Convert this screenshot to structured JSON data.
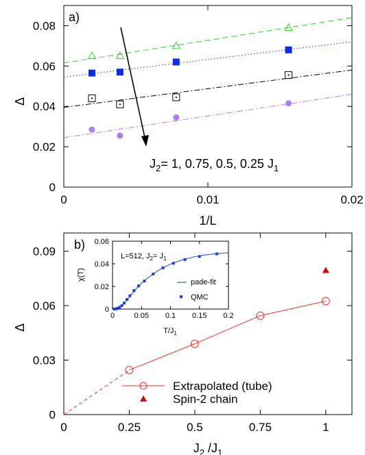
{
  "chart_data": [
    {
      "type": "scatter",
      "panel_label": "a)",
      "xlabel": "1/L",
      "ylabel": "Δ",
      "xlim": [
        0,
        0.02
      ],
      "ylim": [
        0,
        0.09
      ],
      "xticks": [
        0,
        0.01,
        0.02
      ],
      "xtick_labels": [
        "0",
        "0.01",
        "0.02"
      ],
      "yticks": [
        0,
        0.02,
        0.04,
        0.06,
        0.08
      ],
      "ytick_labels": [
        "0",
        "0.02",
        "0.04",
        "0.06",
        "0.08"
      ],
      "annotation": {
        "text": "J2= 1, 0.75, 0.5, 0.25 J1",
        "base": "J",
        "sub1": "2",
        "mid": "= 1, 0.75, 0.5, 0.25 J",
        "sub2": "1"
      },
      "series": [
        {
          "marker": "open-triangle",
          "color": "#33cc33",
          "line_style": "dashed",
          "x": [
            0.00195,
            0.0039,
            0.0078,
            0.0156
          ],
          "y": [
            0.065,
            0.065,
            0.07,
            0.079
          ],
          "fit": [
            [
              0,
              0.0615
            ],
            [
              0.02,
              0.084
            ]
          ]
        },
        {
          "marker": "filled-square",
          "color": "#0a2ee6",
          "line_style": "dotted",
          "x": [
            0.00195,
            0.0039,
            0.0078,
            0.0156
          ],
          "y": [
            0.0565,
            0.057,
            0.062,
            0.068
          ],
          "fit": [
            [
              0,
              0.0545
            ],
            [
              0.02,
              0.072
            ]
          ]
        },
        {
          "marker": "dotted-square",
          "color": "#000000",
          "line_style": "dashdot",
          "x": [
            0.00195,
            0.0039,
            0.0078,
            0.0156
          ],
          "y": [
            0.044,
            0.041,
            0.0445,
            0.0555
          ],
          "fit": [
            [
              0,
              0.0395
            ],
            [
              0.02,
              0.058
            ]
          ]
        },
        {
          "marker": "filled-circle",
          "color": "#b07ee8",
          "line_style": "dashdot",
          "x": [
            0.00195,
            0.0039,
            0.0078,
            0.0156
          ],
          "y": [
            0.0285,
            0.0255,
            0.0345,
            0.0415
          ],
          "fit": [
            [
              0,
              0.0245
            ],
            [
              0.02,
              0.046
            ]
          ]
        }
      ]
    },
    {
      "type": "line",
      "panel_label": "b)",
      "xlabel": "J2 /J1",
      "xlabel_parts": {
        "a": "J",
        "sub1": "2",
        "b": " /J",
        "sub2": "1"
      },
      "ylabel": "Δ",
      "xlim": [
        0,
        1.1
      ],
      "ylim": [
        0,
        0.1
      ],
      "xticks": [
        0,
        0.25,
        0.5,
        0.75,
        1
      ],
      "xtick_labels": [
        "0",
        "0.25",
        "0.5",
        "0.75",
        "1"
      ],
      "yticks": [
        0,
        0.03,
        0.06,
        0.09
      ],
      "ytick_labels": [
        "0",
        "0.03",
        "0.06",
        "0.09"
      ],
      "legend": [
        {
          "label": "Extrapolated (tube)",
          "marker": "open-circle",
          "color": "#e8322a"
        },
        {
          "label": "Spin-2 chain",
          "marker": "filled-triangle",
          "color": "#e00000"
        }
      ],
      "legend_position": "bottom-right",
      "series": [
        {
          "name": "Extrapolated (tube)",
          "marker": "open-circle",
          "color": "#e8322a",
          "x": [
            0.25,
            0.5,
            0.75,
            1
          ],
          "y": [
            0.0245,
            0.039,
            0.0545,
            0.0625
          ],
          "extrapolation": [
            [
              0,
              0
            ],
            [
              0.25,
              0.0245
            ]
          ]
        },
        {
          "name": "Spin-2 chain",
          "marker": "filled-triangle",
          "color": "#e00000",
          "x": [
            1
          ],
          "y": [
            0.0795
          ]
        }
      ]
    },
    {
      "type": "scatter",
      "panel_label": "inset",
      "ylabel": "χ(T)",
      "xlabel": "T/J1",
      "xlabel_parts": {
        "a": "T/J",
        "sub": "1"
      },
      "title": "L=512, J2= J1",
      "title_parts": {
        "a": "L=512, J",
        "sub1": "2",
        "b": "= J",
        "sub2": "1"
      },
      "xlim": [
        0,
        0.2
      ],
      "ylim": [
        0,
        0.06
      ],
      "xticks": [
        0,
        0.05,
        0.1,
        0.15,
        0.2
      ],
      "xtick_labels": [
        "0",
        "0.05",
        "0.1",
        "0.15",
        "0.2"
      ],
      "yticks": [
        0,
        0.02,
        0.04,
        0.06
      ],
      "ytick_labels": [
        "0",
        "0.02",
        "0.04",
        "0.06"
      ],
      "legend": [
        {
          "label": "pade-fit",
          "marker": "line",
          "color": "#1a3fd9"
        },
        {
          "label": "QMC",
          "marker": "filled-square",
          "color": "#1a3fd9"
        }
      ],
      "series": [
        {
          "name": "QMC",
          "color": "#1a3fd9",
          "x": [
            0.003,
            0.006,
            0.009,
            0.012,
            0.016,
            0.02,
            0.025,
            0.03,
            0.037,
            0.045,
            0.055,
            0.07,
            0.087,
            0.105,
            0.125,
            0.15,
            0.18
          ],
          "y": [
            0.0,
            0.0002,
            0.0006,
            0.0015,
            0.003,
            0.0053,
            0.0085,
            0.0118,
            0.0163,
            0.0205,
            0.0248,
            0.031,
            0.0365,
            0.0405,
            0.0438,
            0.0465,
            0.0488
          ]
        },
        {
          "name": "pade-fit",
          "color": "#1a3fd9",
          "x": [
            0.0,
            0.005,
            0.01,
            0.015,
            0.02,
            0.03,
            0.04,
            0.05,
            0.06,
            0.08,
            0.1,
            0.12,
            0.14,
            0.16,
            0.18,
            0.2
          ],
          "y": [
            0.0,
            0.0001,
            0.0007,
            0.0022,
            0.0048,
            0.0112,
            0.0175,
            0.0228,
            0.0272,
            0.0345,
            0.0398,
            0.0435,
            0.0461,
            0.0479,
            0.049,
            0.0498
          ]
        }
      ]
    }
  ]
}
